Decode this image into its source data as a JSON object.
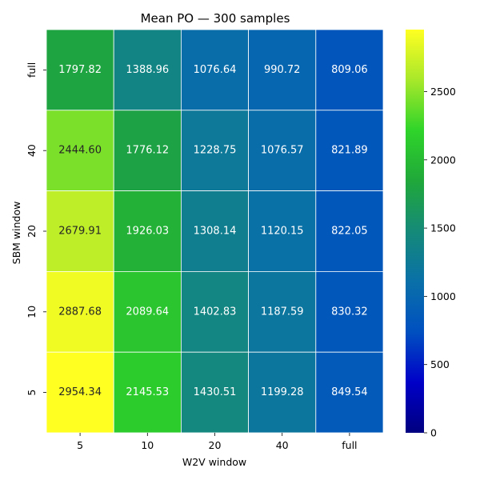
{
  "chart_data": {
    "type": "heatmap",
    "title": "Mean PO — 300 samples",
    "xlabel": "W2V window",
    "ylabel": "SBM window",
    "x_categories": [
      "5",
      "10",
      "20",
      "40",
      "full"
    ],
    "y_categories": [
      "full",
      "40",
      "20",
      "10",
      "5"
    ],
    "values": [
      [
        1797.82,
        1388.96,
        1076.64,
        990.72,
        809.06
      ],
      [
        2444.6,
        1776.12,
        1228.75,
        1076.57,
        821.89
      ],
      [
        2679.91,
        1926.03,
        1308.14,
        1120.15,
        822.05
      ],
      [
        2887.68,
        2089.64,
        1402.83,
        1187.59,
        830.32
      ],
      [
        2954.34,
        2145.53,
        1430.51,
        1199.28,
        849.54
      ]
    ],
    "value_format": "2 decimals",
    "colormap": "gist_earth-like (navy → blue → teal → green → yellow)",
    "colormap_stops": [
      "#000080",
      "#0000c8",
      "#0050c0",
      "#0a70a8",
      "#158a78",
      "#20a83a",
      "#2fd42a",
      "#a8e82a",
      "#ffff22"
    ],
    "annotation_colors": {
      "light_text": "#ffffff",
      "dark_text": "#262626"
    },
    "colorbar": {
      "range": [
        0,
        2954.34
      ],
      "ticks": [
        0,
        500,
        1000,
        1500,
        2000,
        2500
      ]
    },
    "grid": "white cell separators",
    "legend": "colorbar on the right"
  }
}
